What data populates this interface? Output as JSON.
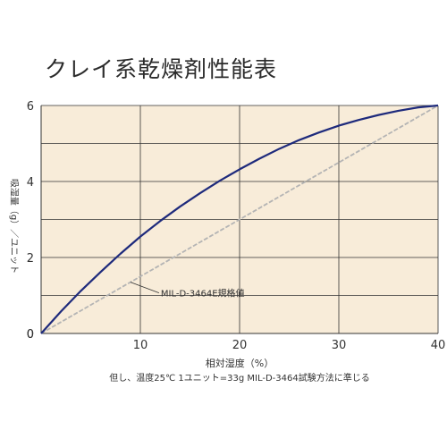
{
  "title": "クレイ系乾燥剤性能表",
  "footnote": "但し、温度25℃ 1ユニット=33g MIL-D-3464試験方法に準じる",
  "colors": {
    "plot_background": "#f8ecd9",
    "grid": "#333333",
    "series_main": "#1e2a7c",
    "series_reference": "#b4b4b4"
  },
  "chart_data": {
    "type": "line",
    "xlabel": "相対湿度（%）",
    "ylabel": "吸湿量（g）／ユニット",
    "xlim": [
      0,
      40
    ],
    "ylim": [
      0,
      6
    ],
    "xticks": [
      "10",
      "20",
      "30",
      "40"
    ],
    "yticks": [
      "0",
      "2",
      "4",
      "6"
    ],
    "origin_label": "0",
    "grid": true,
    "series": [
      {
        "name": "",
        "x": [
          0,
          2,
          4,
          6,
          8,
          10,
          12,
          14,
          16,
          18,
          20,
          22,
          24,
          26,
          28,
          30,
          32,
          34,
          36,
          38,
          40
        ],
        "y": [
          0,
          0.58,
          1.12,
          1.62,
          2.1,
          2.55,
          2.96,
          3.34,
          3.69,
          4.02,
          4.32,
          4.6,
          4.86,
          5.09,
          5.29,
          5.47,
          5.62,
          5.75,
          5.86,
          5.95,
          6.0
        ]
      },
      {
        "name": "MIL-D-3464E規格値",
        "x": [
          0,
          40
        ],
        "y": [
          0,
          6
        ]
      }
    ],
    "annotations": [
      {
        "text": "MIL-D-3464E規格値",
        "points_to_series": 1,
        "at_x": 9
      }
    ]
  }
}
